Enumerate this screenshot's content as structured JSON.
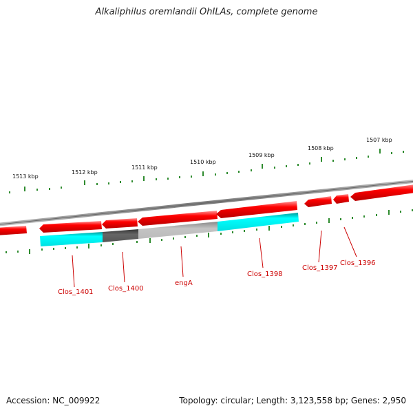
{
  "title": "Alkaliphilus oremlandii OhILAs, complete genome",
  "footer": {
    "accession": "Accession: NC_009922",
    "summary": "Topology: circular; Length: 3,123,558 bp; Genes: 2,950"
  },
  "scale_labels": [
    "1513 kbp",
    "1512 kbp",
    "1511 kbp",
    "1510 kbp",
    "1509 kbp",
    "1508 kbp",
    "1507 kbp"
  ],
  "gene_labels": [
    "Clos_1401",
    "Clos_1400",
    "engA",
    "Clos_1398",
    "Clos_1397",
    "Clos_1396"
  ],
  "colors": {
    "forward_cds": "#ff0000",
    "reverse_cds": "#ff0000",
    "cog_cyan": "#00ffff",
    "cog_dark": "#555555",
    "cog_light": "#bbbbbb",
    "backbone": "#888888",
    "ticks": "#2e8b2e",
    "label_lines": "#cc0000"
  }
}
